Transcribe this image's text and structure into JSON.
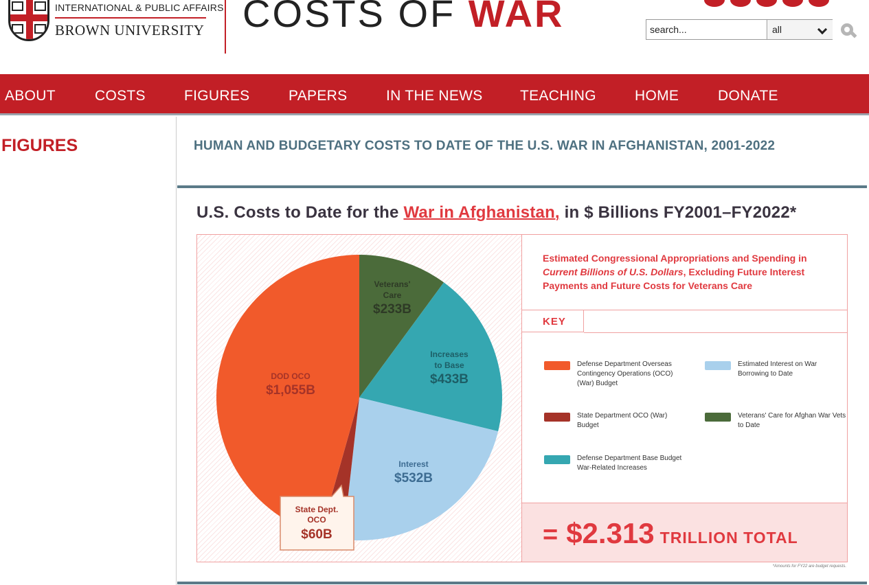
{
  "header": {
    "institution_line1": "INTERNATIONAL & PUBLIC AFFAIRS",
    "institution_line2": "BROWN UNIVERSITY",
    "site_title_plain": "COSTS OF ",
    "site_title_accent": "WAR",
    "search": {
      "placeholder": "search...",
      "scope_value": "all"
    }
  },
  "nav": {
    "items": [
      "ABOUT",
      "COSTS",
      "FIGURES",
      "PAPERS",
      "IN THE NEWS",
      "TEACHING",
      "HOME",
      "DONATE"
    ]
  },
  "sidebar": {
    "title": "FIGURES"
  },
  "main": {
    "heading": "HUMAN AND BUDGETARY COSTS TO DATE OF THE U.S. WAR IN AFGHANISTAN, 2001-2022"
  },
  "infographic": {
    "title_prefix": "U.S. Costs to Date for the ",
    "title_highlight": "War in Afghanistan,",
    "title_suffix": " in $ Billions FY2001–FY2022*",
    "description_line1": "Estimated Congressional Appropriations and Spending in",
    "description_italic": "Current Billions of U.S. Dollars",
    "description_line2": ", Excluding Future Interest Payments and Future Costs for Veterans Care",
    "key_title": "KEY",
    "total_eq": "=",
    "total_amount": "$2.313",
    "total_suffix": "TRILLION TOTAL",
    "footnote": "*Amounts for FY22 are budget requests."
  },
  "chart_data": {
    "type": "pie",
    "unit": "$ Billions",
    "slices": [
      {
        "name": "Veterans' Care",
        "label_lines": [
          "Veterans'",
          "Care"
        ],
        "value_text": "$233B",
        "value": 233,
        "color": "#4b6b3a",
        "key": "Veterans' Care for Afghan War Vets to Date"
      },
      {
        "name": "Increases to Base",
        "label_lines": [
          "Increases",
          "to Base"
        ],
        "value_text": "$433B",
        "value": 433,
        "color": "#35a7b1",
        "key": "Defense Department Base Budget War-Related Increases"
      },
      {
        "name": "Interest",
        "label_lines": [
          "Interest"
        ],
        "value_text": "$532B",
        "value": 532,
        "color": "#a9d0ec",
        "key": "Estimated Interest on War Borrowing to Date"
      },
      {
        "name": "State Dept. OCO",
        "label_lines": [
          "State Dept.",
          "OCO"
        ],
        "value_text": "$60B",
        "value": 60,
        "color": "#a53328",
        "key": "State Department OCO (War) Budget"
      },
      {
        "name": "DOD OCO",
        "label_lines": [
          "DOD OCO"
        ],
        "value_text": "$1,055B",
        "value": 1055,
        "color": "#f15a2b",
        "key": "Defense Department Overseas Contingency Operations (OCO) (War) Budget"
      }
    ],
    "total": "$2.313 TRILLION TOTAL"
  },
  "colors": {
    "brand_red": "#c21f26",
    "heading_slate": "#4e7080",
    "accent_coral": "#e0393f"
  }
}
